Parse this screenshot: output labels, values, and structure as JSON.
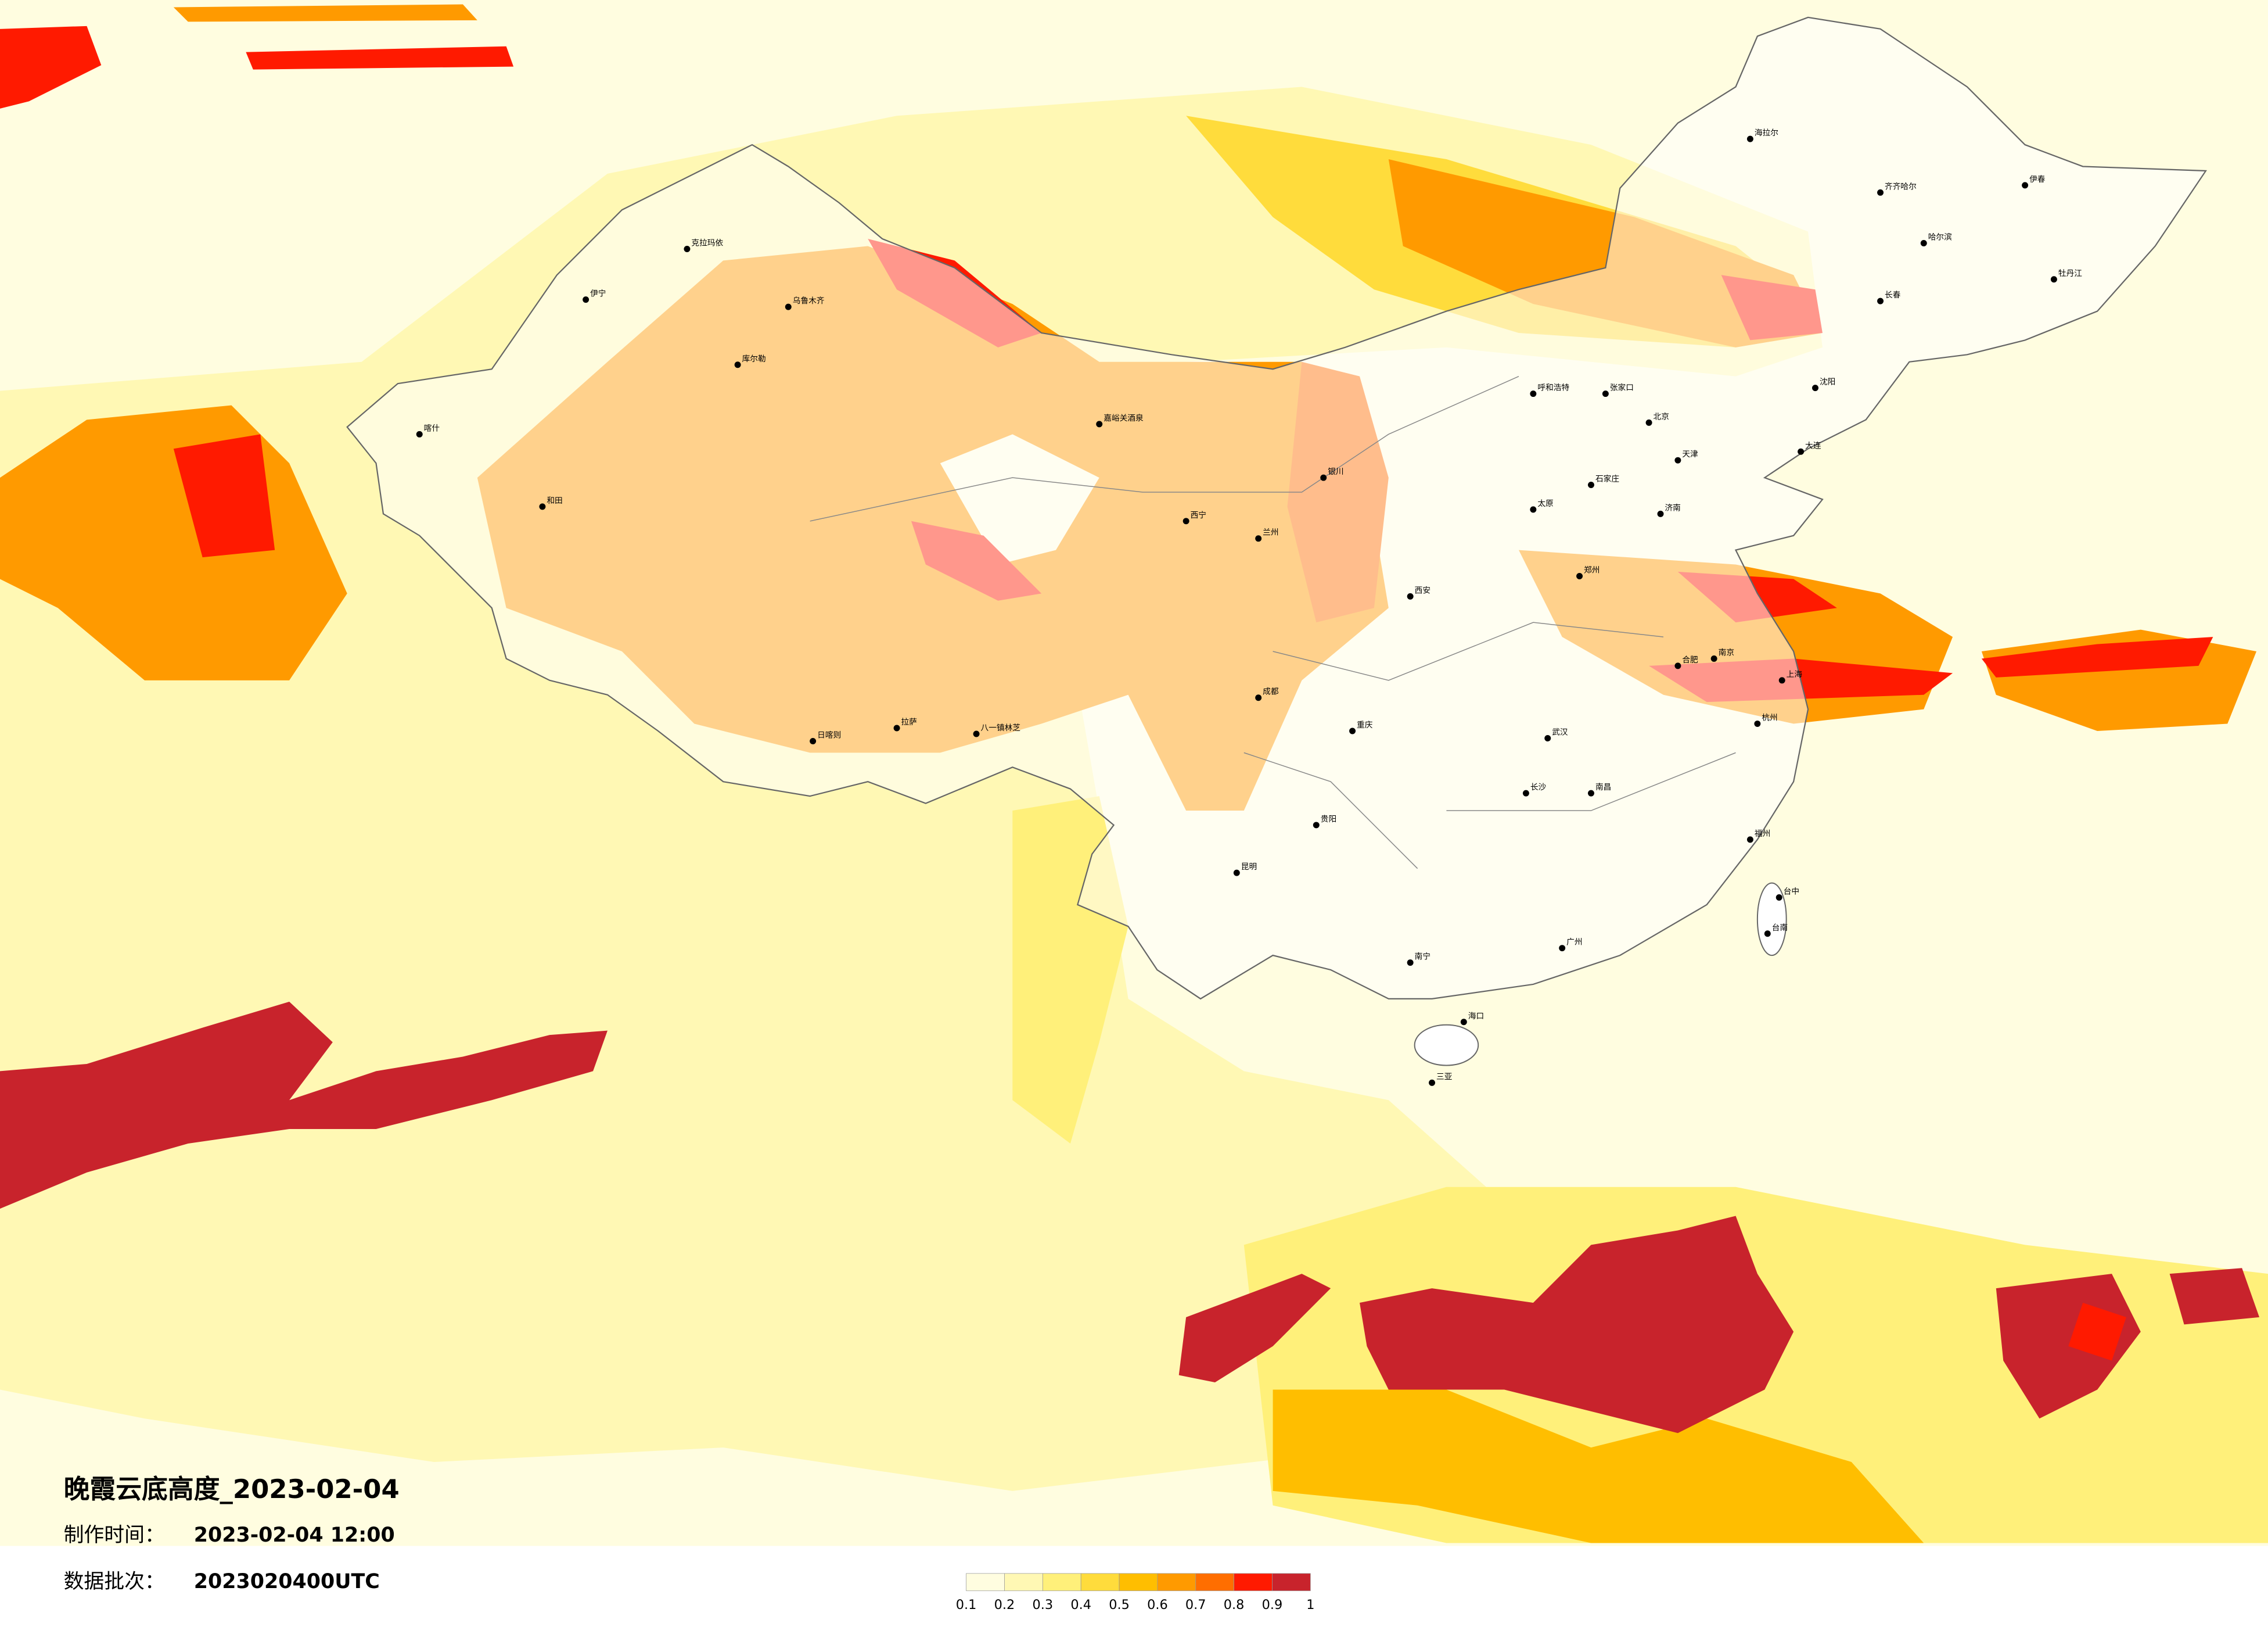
{
  "title": "晚霞云底高度_2023-02-04",
  "made_time": {
    "label": "制作时间：",
    "value": "2023-02-04 12:00"
  },
  "data_batch": {
    "label": "数据批次：",
    "value": "2023020400UTC"
  },
  "legend": {
    "colors": [
      "#fffde0",
      "#fff8b4",
      "#fff07a",
      "#ffdc3c",
      "#ffbe00",
      "#ff9a00",
      "#ff6e00",
      "#ff1a00",
      "#c8232c"
    ],
    "ticks": [
      0.1,
      0.2,
      0.3,
      0.4,
      0.5,
      0.6,
      0.7,
      0.8,
      0.9,
      1
    ]
  },
  "cities": [
    "北京",
    "天津",
    "石家庄",
    "太原",
    "呼和浩特",
    "张家口",
    "济南",
    "郑州",
    "南京",
    "上海",
    "杭州",
    "合肥",
    "武汉",
    "长沙",
    "南昌",
    "福州",
    "广州",
    "南宁",
    "海口",
    "三亚",
    "贵阳",
    "昆明",
    "重庆",
    "成都",
    "西安",
    "兰州",
    "西宁",
    "银川",
    "拉萨",
    "日喀则",
    "八一镇林芝",
    "乌鲁木齐",
    "克拉玛依",
    "伊宁",
    "库尔勒",
    "喀什",
    "和田",
    "嘉峪关酒泉",
    "哈尔滨",
    "长春",
    "沈阳",
    "海拉尔",
    "齐齐哈尔",
    "伊春",
    "牡丹江",
    "大连",
    "台中",
    "台南"
  ]
}
